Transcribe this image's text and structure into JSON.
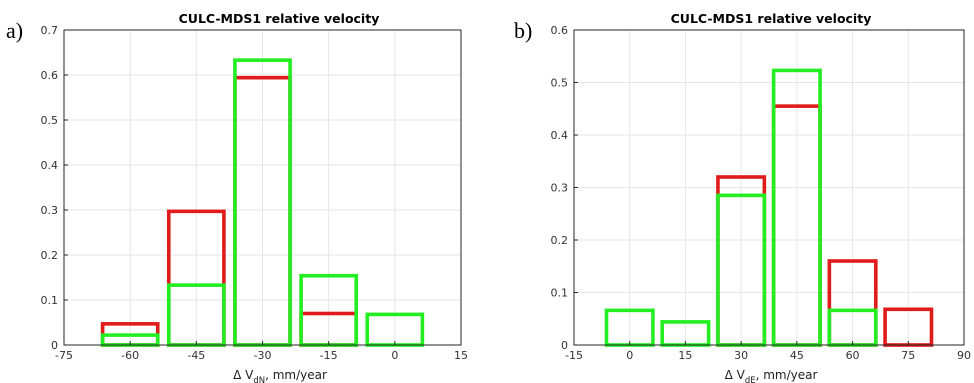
{
  "colors": {
    "red": "#e01b1b",
    "green": "#22ee22"
  },
  "chart_data": [
    {
      "panel_label": "a)",
      "type": "bar",
      "title": "CULC-MDS1 relative velocity",
      "xlabel": {
        "main": "Δ V",
        "sub": "dN",
        "tail": ", mm/year"
      },
      "xlim": [
        -75,
        15
      ],
      "ylim": [
        0,
        0.7
      ],
      "xticks": [
        -75,
        -60,
        -45,
        -30,
        -15,
        0,
        15
      ],
      "yticks": [
        0,
        0.1,
        0.2,
        0.3,
        0.4,
        0.5,
        0.6,
        0.7
      ],
      "x_tick_labels": [
        "-75",
        "-60",
        "-45",
        "-30",
        "-15",
        "0",
        "15"
      ],
      "y_tick_labels": [
        "0",
        "0.1",
        "0.2",
        "0.3",
        "0.4",
        "0.5",
        "0.6",
        "0.7"
      ],
      "bin_width": 12.5,
      "x": [
        -60,
        -45,
        -30,
        -15,
        0
      ],
      "series": [
        {
          "color": "red",
          "values": [
            0.047,
            0.297,
            0.594,
            0.07,
            0
          ]
        },
        {
          "color": "green",
          "values": [
            0.022,
            0.133,
            0.633,
            0.154,
            0.068
          ]
        }
      ]
    },
    {
      "panel_label": "b)",
      "type": "bar",
      "title": "CULC-MDS1 relative velocity",
      "xlabel": {
        "main": "Δ V",
        "sub": "dE",
        "tail": ", mm/year"
      },
      "xlim": [
        -15,
        90
      ],
      "ylim": [
        0,
        0.6
      ],
      "xticks": [
        -15,
        0,
        15,
        30,
        45,
        60,
        75,
        90
      ],
      "yticks": [
        0,
        0.1,
        0.2,
        0.3,
        0.4,
        0.5,
        0.6
      ],
      "x_tick_labels": [
        "-15",
        "0",
        "15",
        "30",
        "45",
        "60",
        "75",
        "90"
      ],
      "y_tick_labels": [
        "0",
        "0.1",
        "0.2",
        "0.3",
        "0.4",
        "0.5",
        "0.6"
      ],
      "bin_width": 12.5,
      "x": [
        0,
        15,
        30,
        45,
        60,
        75
      ],
      "series": [
        {
          "color": "red",
          "values": [
            0,
            0,
            0.32,
            0.455,
            0.16,
            0.068
          ]
        },
        {
          "color": "green",
          "values": [
            0.066,
            0.044,
            0.285,
            0.523,
            0.066,
            0
          ]
        }
      ]
    }
  ]
}
